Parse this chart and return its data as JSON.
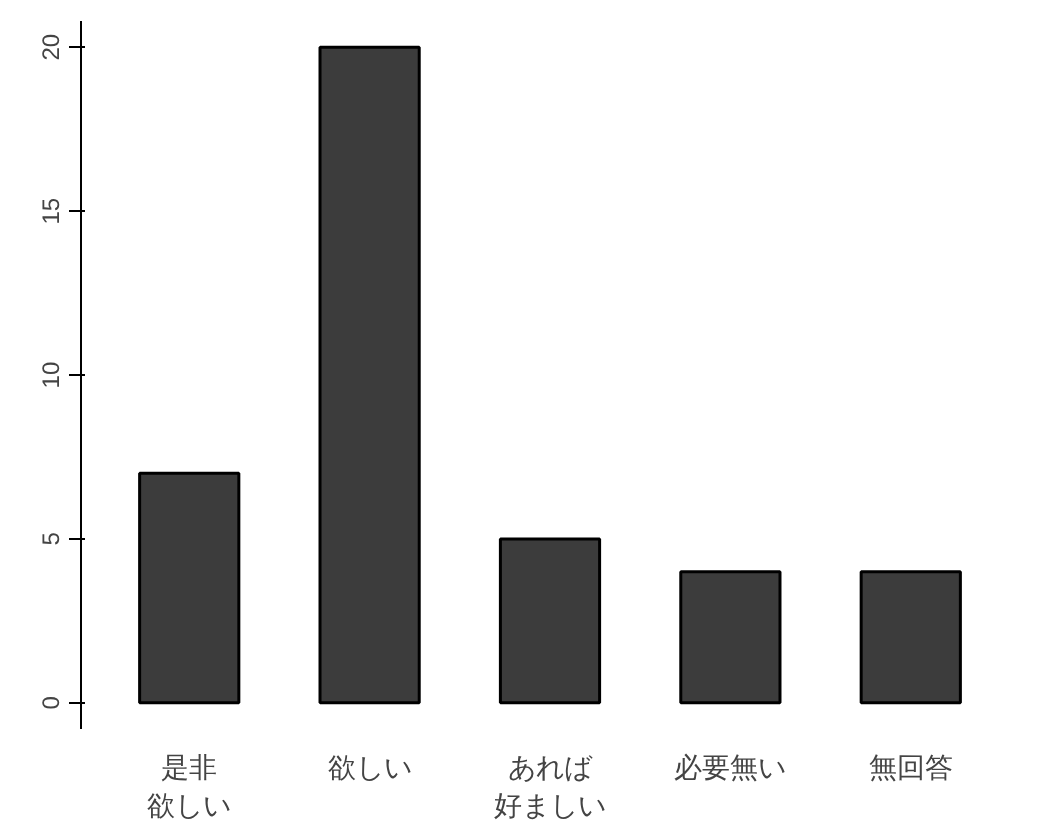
{
  "chart_data": {
    "type": "bar",
    "categories": [
      "是非欲しい",
      "欲しい",
      "あれば好ましい",
      "必要無い",
      "無回答"
    ],
    "values": [
      7,
      20,
      5,
      4,
      4
    ],
    "color": "#3c3c3c",
    "ylim": [
      -0.8,
      20.8
    ],
    "yticks": [
      0,
      5,
      10,
      15,
      20
    ],
    "grid": false
  }
}
